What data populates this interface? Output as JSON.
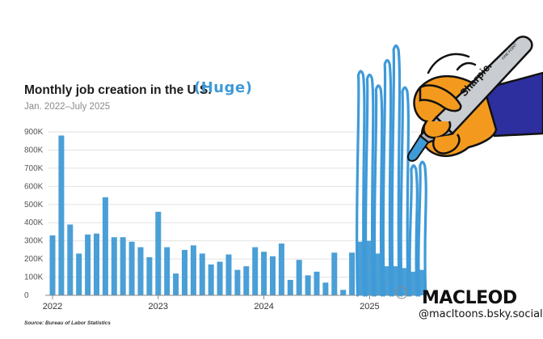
{
  "chart_data": {
    "type": "bar",
    "title": "Monthly job creation in the U.S.",
    "subtitle": "Jan. 2022–July 2025",
    "ylim": [
      0,
      900
    ],
    "y_ticks": [
      "0",
      "100K",
      "200K",
      "300K",
      "400K",
      "500K",
      "600K",
      "700K",
      "800K",
      "900K"
    ],
    "y_tick_values": [
      0,
      100,
      200,
      300,
      400,
      500,
      600,
      700,
      800,
      900
    ],
    "x_ticks": [
      "2022",
      "2023",
      "2024",
      "2025"
    ],
    "x_tick_index": [
      0,
      12,
      24,
      36
    ],
    "grid": true,
    "bar_color": "#4a9fd6",
    "values": [
      330,
      880,
      390,
      230,
      335,
      340,
      540,
      320,
      320,
      295,
      265,
      210,
      460,
      265,
      120,
      250,
      275,
      230,
      170,
      185,
      225,
      140,
      160,
      265,
      240,
      215,
      285,
      85,
      195,
      110,
      130,
      70,
      235,
      30,
      235,
      295,
      300,
      230,
      160,
      160,
      150,
      130,
      140
    ]
  },
  "annotation": {
    "text": "(Huge)",
    "color": "#3f9ad8",
    "scribble_values": [
      1230,
      1210,
      1150,
      1290,
      1370,
      1140,
      710,
      730
    ]
  },
  "source": "Source: Bureau of Labor Statistics",
  "signature": {
    "name": "MACLEOD",
    "handle": "@macltoons.bsky.social"
  },
  "marker": {
    "brand": "Sharpie.",
    "small_text": "FINE POINT",
    "icon": "sharpie-marker-in-hand-icon"
  }
}
